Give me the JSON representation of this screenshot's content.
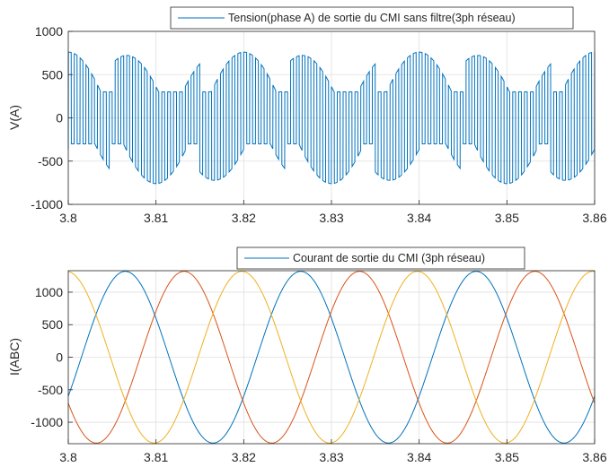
{
  "chart_data": [
    {
      "type": "line",
      "title": "",
      "xlabel": "",
      "ylabel": "V(A)",
      "xlim": [
        3.8,
        3.86
      ],
      "ylim": [
        -1000,
        1000
      ],
      "xticks": [
        "3.8",
        "3.81",
        "3.82",
        "3.83",
        "3.84",
        "3.85",
        "3.86"
      ],
      "yticks": [
        "1000",
        "500",
        "0",
        "-500",
        "-1000"
      ],
      "grid": true,
      "legend": "top-right",
      "series": [
        {
          "name": "Tension(phase A) de sortie du CMI sans filtre(3ph réseau)",
          "color": "#0072BD",
          "description_free": true,
          "form": "switched multilevel PWM",
          "fundamental_hz": 50,
          "phase_peak_time": 3.82,
          "peak": 760,
          "switch_level": 700,
          "drop_time_offset": 0.00167,
          "band_width": 300
        }
      ]
    },
    {
      "type": "line",
      "title": "",
      "xlabel": "",
      "ylabel": "I(ABC)",
      "xlim": [
        3.8,
        3.86
      ],
      "ylim": [
        -1330,
        1330
      ],
      "xticks": [
        "3.8",
        "3.81",
        "3.82",
        "3.83",
        "3.84",
        "3.85",
        "3.86"
      ],
      "yticks": [
        "1000",
        "500",
        "0",
        "-500",
        "-1000"
      ],
      "grid": true,
      "legend": "top-right",
      "legend_label": "Courant de sortie du CMI (3ph réseau)",
      "series": [
        {
          "color": "#0072BD",
          "amplitude": 1320,
          "frequency_hz": 50,
          "peak_time": 3.8065
        },
        {
          "color": "#D95319",
          "amplitude": 1320,
          "frequency_hz": 50,
          "peak_time": 3.8132
        },
        {
          "color": "#EDB120",
          "amplitude": 1320,
          "frequency_hz": 50,
          "peak_time": 3.7998
        }
      ]
    }
  ]
}
